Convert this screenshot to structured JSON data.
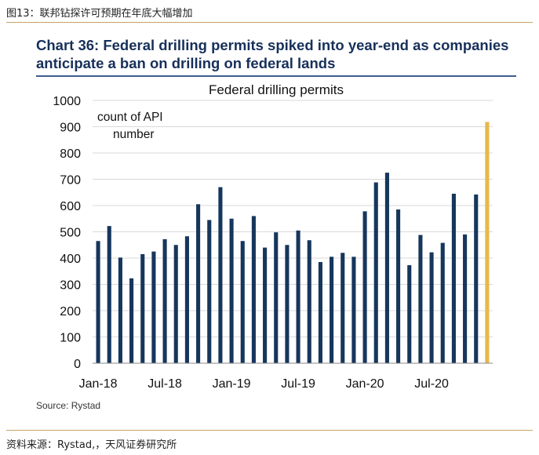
{
  "figure_title": "图13：联邦钻探许可预期在年底大幅增加",
  "chart_heading": "Chart 36: Federal drilling permits spiked into year-end as companies anticipate a ban on drilling on federal lands",
  "source": "Source: Rystad",
  "footnote": "资料来源：Rystad,，天风证券研究所",
  "colors": {
    "bar": "#16365c",
    "highlight": "#e6b84c",
    "rule": "#c9a46a",
    "heading": "#17305a"
  },
  "chart_data": {
    "type": "bar",
    "title": "Federal drilling permits",
    "ylabel": "count of API number",
    "ylim": [
      0,
      1000
    ],
    "yticks": [
      0,
      100,
      200,
      300,
      400,
      500,
      600,
      700,
      800,
      900,
      1000
    ],
    "grid": true,
    "x_tick_labels": [
      "Jan-18",
      "Jul-18",
      "Jan-19",
      "Jul-19",
      "Jan-20",
      "Jul-20"
    ],
    "categories": [
      "Jan-18",
      "Feb-18",
      "Mar-18",
      "Apr-18",
      "May-18",
      "Jun-18",
      "Jul-18",
      "Aug-18",
      "Sep-18",
      "Oct-18",
      "Nov-18",
      "Dec-18",
      "Jan-19",
      "Feb-19",
      "Mar-19",
      "Apr-19",
      "May-19",
      "Jun-19",
      "Jul-19",
      "Aug-19",
      "Sep-19",
      "Oct-19",
      "Nov-19",
      "Dec-19",
      "Jan-20",
      "Feb-20",
      "Mar-20",
      "Apr-20",
      "May-20",
      "Jun-20",
      "Jul-20",
      "Aug-20",
      "Sep-20",
      "Oct-20",
      "Nov-20"
    ],
    "values": [
      465,
      522,
      402,
      323,
      415,
      425,
      472,
      450,
      483,
      605,
      545,
      670,
      550,
      465,
      560,
      440,
      498,
      450,
      505,
      468,
      385,
      405,
      420,
      405,
      578,
      688,
      725,
      585,
      373,
      488,
      422,
      458,
      645,
      490,
      642
    ],
    "highlight": {
      "label": "Dec-20",
      "value": 918
    }
  }
}
